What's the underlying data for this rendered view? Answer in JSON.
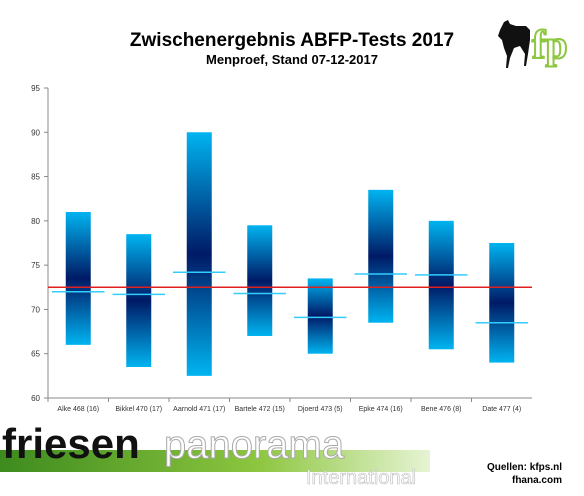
{
  "header": {
    "title": "Zwischenergebnis ABFP-Tests 2017",
    "subtitle": "Menproef, Stand 07-12-2017"
  },
  "logo": {
    "text": "fp",
    "icon": "horse-icon"
  },
  "banner": {
    "brand_bold": "friesen",
    "brand_light": "panorama",
    "sub": "International"
  },
  "source": {
    "line1": "Quellen:  kfps.nl",
    "line2": "fhana.com"
  },
  "chart_data": {
    "type": "floating-bar",
    "title": "Zwischenergebnis ABFP-Tests 2017",
    "subtitle": "Menproef, Stand 07-12-2017",
    "categories": [
      "Alke 468 (16)",
      "Bikkel 470 (17)",
      "Aarnold 471 (17)",
      "Bartele 472 (15)",
      "Djoerd 473 (5)",
      "Epke 474 (16)",
      "Bene 476 (8)",
      "Date 477 (4)"
    ],
    "series": [
      {
        "low": [
          66,
          63.5,
          62.5,
          67,
          65,
          68.5,
          65.5,
          64
        ]
      },
      {
        "high": [
          81,
          78.5,
          90,
          79.5,
          73.5,
          83.5,
          80,
          77.5
        ]
      },
      {
        "mean": [
          72,
          71.7,
          74.2,
          71.8,
          69.1,
          74,
          73.9,
          68.5
        ]
      }
    ],
    "reference_line": 72.5,
    "ylim": [
      60,
      95
    ],
    "yticks": [
      60,
      65,
      70,
      75,
      80,
      85,
      90,
      95
    ],
    "xlabel": "",
    "ylabel": "",
    "grid": false,
    "colors": {
      "bar_edge": "#00b4f0",
      "bar_center": "#001a66",
      "mean_marker": "#33ccff",
      "reference_line": "#e02020",
      "axis": "#888888"
    }
  }
}
